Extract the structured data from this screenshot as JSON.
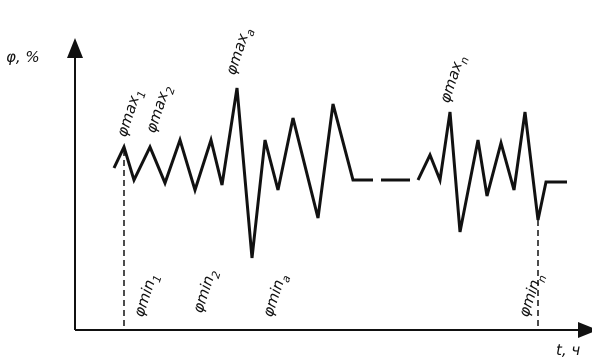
{
  "axes": {
    "y_label": "φ, %",
    "x_label": "t, ч"
  },
  "labels": {
    "phi": "φ",
    "max": "max",
    "min": "min",
    "max_1_sub": "1",
    "max_2_sub": "2",
    "max_a_sub": "a",
    "max_n_sub": "n",
    "min_1_sub": "1",
    "min_2_sub": "2",
    "min_a_sub": "a",
    "min_n_sub": "n"
  }
}
